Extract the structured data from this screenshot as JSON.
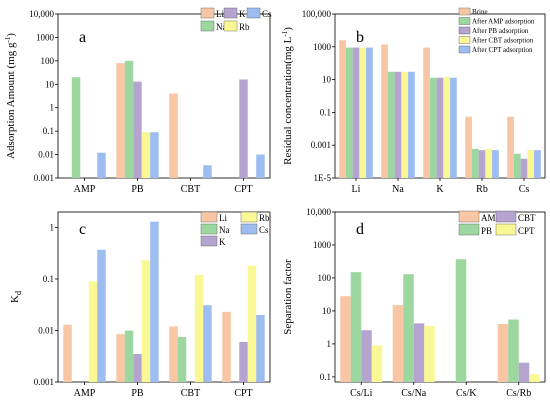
{
  "figure": {
    "colors": {
      "orange": "#f8c6a4",
      "green": "#9dd7a0",
      "purple": "#b6a4d0",
      "blue": "#9dbcf0",
      "yellow": "#faf795"
    }
  },
  "chart_data": [
    {
      "panel": "a",
      "type": "bar",
      "yscale": "log",
      "ylabel": "Adsorption Amount (mg g",
      "ylabel_sup": "-1",
      "ylabel_end": ")",
      "ylim": [
        0.001,
        10000
      ],
      "yticks": [
        "0.001",
        "0.01",
        "0.1",
        "1",
        "10",
        "100",
        "1000",
        "10,000"
      ],
      "categories": [
        "AMP",
        "PB",
        "CBT",
        "CPT"
      ],
      "legend_cols": 3,
      "series": [
        {
          "name": "Li",
          "color": "orange",
          "values": [
            null,
            80,
            4,
            null
          ]
        },
        {
          "name": "Na",
          "color": "green",
          "values": [
            20,
            100,
            null,
            null
          ]
        },
        {
          "name": "K",
          "color": "purple",
          "values": [
            null,
            13,
            null,
            16
          ]
        },
        {
          "name": "Rb",
          "color": "yellow",
          "values": [
            null,
            0.09,
            null,
            null
          ]
        },
        {
          "name": "Cs",
          "color": "blue",
          "values": [
            0.012,
            0.09,
            0.0035,
            0.01
          ]
        }
      ]
    },
    {
      "panel": "b",
      "type": "bar",
      "yscale": "log",
      "ylabel": "Residual concentration(mg L",
      "ylabel_sup": "-1",
      "ylabel_end": ")",
      "ylim": [
        1e-05,
        100000
      ],
      "yticks": [
        "1E-5",
        "0.001",
        "0.1",
        "10",
        "1000",
        "100,000"
      ],
      "categories": [
        "Li",
        "Na",
        "K",
        "Rb",
        "Cs"
      ],
      "legend_cols": 1,
      "series": [
        {
          "name": "Brine",
          "color": "orange",
          "values": [
            2500,
            1400,
            900,
            0.055,
            0.055
          ]
        },
        {
          "name": "After AMP adsorption",
          "color": "green",
          "values": [
            900,
            30,
            13,
            0.0006,
            0.0003
          ]
        },
        {
          "name": "After PB adsorption",
          "color": "purple",
          "values": [
            900,
            30,
            13,
            0.0005,
            0.00015
          ]
        },
        {
          "name": "After CBT adsorption",
          "color": "yellow",
          "values": [
            900,
            30,
            15,
            0.0006,
            0.0005
          ]
        },
        {
          "name": "After CPT adsorption",
          "color": "blue",
          "values": [
            900,
            30,
            13,
            0.0005,
            0.0005
          ]
        }
      ]
    },
    {
      "panel": "c",
      "type": "bar",
      "yscale": "log",
      "ylabel": "K",
      "ylabel_sub": "d",
      "ylim": [
        0.001,
        2
      ],
      "yticks": [
        "0.001",
        "0.01",
        "0.1",
        "1"
      ],
      "categories": [
        "AMP",
        "PB",
        "CBT",
        "CPT"
      ],
      "legend_cols": 2,
      "series": [
        {
          "name": "Li",
          "color": "orange",
          "values": [
            0.013,
            0.0085,
            0.012,
            0.023
          ]
        },
        {
          "name": "Na",
          "color": "green",
          "values": [
            null,
            0.01,
            0.0075,
            null
          ]
        },
        {
          "name": "K",
          "color": "purple",
          "values": [
            null,
            0.0035,
            null,
            0.006
          ]
        },
        {
          "name": "Rb",
          "color": "yellow",
          "values": [
            0.09,
            0.23,
            0.12,
            0.18
          ]
        },
        {
          "name": "Cs",
          "color": "blue",
          "values": [
            0.37,
            1.3,
            0.031,
            0.02
          ]
        }
      ]
    },
    {
      "panel": "d",
      "type": "bar",
      "yscale": "log",
      "ylabel": "Separation factor",
      "ylim": [
        0.07,
        10000
      ],
      "yticks": [
        "0.1",
        "1",
        "10",
        "100",
        "1000",
        "10,000"
      ],
      "categories": [
        "Cs/Li",
        "Cs/Na",
        "Cs/K",
        "Cs/Rb"
      ],
      "legend_cols": 2,
      "series": [
        {
          "name": "AMP",
          "color": "orange",
          "values": [
            28,
            15,
            null,
            4
          ]
        },
        {
          "name": "PB",
          "color": "green",
          "values": [
            150,
            130,
            370,
            5.5
          ]
        },
        {
          "name": "CBT",
          "color": "purple",
          "values": [
            2.6,
            4.2,
            null,
            0.27
          ]
        },
        {
          "name": "CPT",
          "color": "yellow",
          "values": [
            0.9,
            3.5,
            null,
            0.12
          ]
        }
      ]
    }
  ]
}
